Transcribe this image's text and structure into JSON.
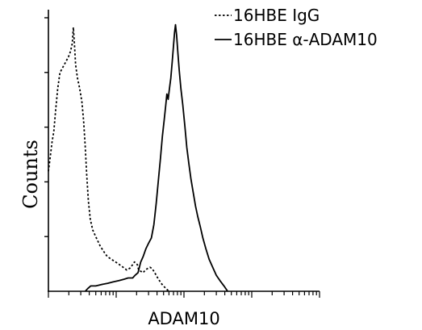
{
  "chart_data": {
    "type": "line",
    "title": "",
    "xlabel": "ADAM10",
    "ylabel": "Counts",
    "xscale": "log",
    "xlim": [
      1,
      10000
    ],
    "ylim": [
      0,
      1.02
    ],
    "tick_labels": "none",
    "grid": false,
    "legend_position": "top-right",
    "series": [
      {
        "name": "16HBE IgG",
        "line_style": "dotted",
        "color": "#000000",
        "points": [
          [
            1.0,
            0.45
          ],
          [
            1.06,
            0.5
          ],
          [
            1.13,
            0.56
          ],
          [
            1.2,
            0.6
          ],
          [
            1.28,
            0.68
          ],
          [
            1.37,
            0.76
          ],
          [
            1.48,
            0.82
          ],
          [
            1.63,
            0.84
          ],
          [
            1.8,
            0.86
          ],
          [
            1.98,
            0.88
          ],
          [
            2.12,
            0.9
          ],
          [
            2.25,
            0.93
          ],
          [
            2.33,
            0.99
          ],
          [
            2.42,
            0.93
          ],
          [
            2.52,
            0.85
          ],
          [
            2.68,
            0.8
          ],
          [
            2.9,
            0.76
          ],
          [
            3.12,
            0.71
          ],
          [
            3.3,
            0.64
          ],
          [
            3.48,
            0.55
          ],
          [
            3.67,
            0.44
          ],
          [
            3.88,
            0.34
          ],
          [
            4.15,
            0.27
          ],
          [
            4.5,
            0.23
          ],
          [
            5.1,
            0.2
          ],
          [
            5.8,
            0.17
          ],
          [
            6.5,
            0.15
          ],
          [
            7.4,
            0.13
          ],
          [
            8.5,
            0.12
          ],
          [
            9.8,
            0.11
          ],
          [
            11.2,
            0.1
          ],
          [
            12.7,
            0.09
          ],
          [
            14.3,
            0.08
          ],
          [
            16.0,
            0.087
          ],
          [
            17.5,
            0.1
          ],
          [
            18.6,
            0.11
          ],
          [
            19.6,
            0.105
          ],
          [
            20.5,
            0.1
          ],
          [
            21.5,
            0.08
          ],
          [
            23.0,
            0.075
          ],
          [
            25.0,
            0.07
          ],
          [
            27.0,
            0.08
          ],
          [
            29.0,
            0.085
          ],
          [
            31.5,
            0.09
          ],
          [
            34.0,
            0.085
          ],
          [
            37.0,
            0.07
          ],
          [
            41.0,
            0.05
          ],
          [
            46.0,
            0.03
          ],
          [
            52.0,
            0.015
          ],
          [
            57.0,
            0.005
          ],
          [
            60.0,
            0.0
          ]
        ]
      },
      {
        "name": "16HBE α-ADAM10",
        "line_style": "solid",
        "color": "#000000",
        "points": [
          [
            3.5,
            0.0
          ],
          [
            3.8,
            0.01
          ],
          [
            4.2,
            0.02
          ],
          [
            5.0,
            0.02
          ],
          [
            6.0,
            0.025
          ],
          [
            7.5,
            0.03
          ],
          [
            9.0,
            0.035
          ],
          [
            11.0,
            0.04
          ],
          [
            13.0,
            0.045
          ],
          [
            15.0,
            0.05
          ],
          [
            17.5,
            0.05
          ],
          [
            19.0,
            0.06
          ],
          [
            21.0,
            0.07
          ],
          [
            23.0,
            0.11
          ],
          [
            25.0,
            0.13
          ],
          [
            27.5,
            0.16
          ],
          [
            30.0,
            0.18
          ],
          [
            33.0,
            0.2
          ],
          [
            36.0,
            0.25
          ],
          [
            39.0,
            0.33
          ],
          [
            42.0,
            0.42
          ],
          [
            45.0,
            0.5
          ],
          [
            48.0,
            0.58
          ],
          [
            51.0,
            0.64
          ],
          [
            54.0,
            0.7
          ],
          [
            56.0,
            0.74
          ],
          [
            58.5,
            0.72
          ],
          [
            61.0,
            0.76
          ],
          [
            64.0,
            0.8
          ],
          [
            67.0,
            0.86
          ],
          [
            70.0,
            0.92
          ],
          [
            72.5,
            0.97
          ],
          [
            75.0,
            1.0
          ],
          [
            78.0,
            0.96
          ],
          [
            81.0,
            0.9
          ],
          [
            85.0,
            0.83
          ],
          [
            90.0,
            0.76
          ],
          [
            96.0,
            0.7
          ],
          [
            103.0,
            0.62
          ],
          [
            110.0,
            0.54
          ],
          [
            118.0,
            0.48
          ],
          [
            127.0,
            0.42
          ],
          [
            137.0,
            0.37
          ],
          [
            148.0,
            0.32
          ],
          [
            160.0,
            0.28
          ],
          [
            175.0,
            0.24
          ],
          [
            190.0,
            0.2
          ],
          [
            210.0,
            0.16
          ],
          [
            235.0,
            0.12
          ],
          [
            265.0,
            0.09
          ],
          [
            300.0,
            0.06
          ],
          [
            340.0,
            0.04
          ],
          [
            390.0,
            0.02
          ],
          [
            440.0,
            0.0
          ]
        ]
      }
    ]
  }
}
